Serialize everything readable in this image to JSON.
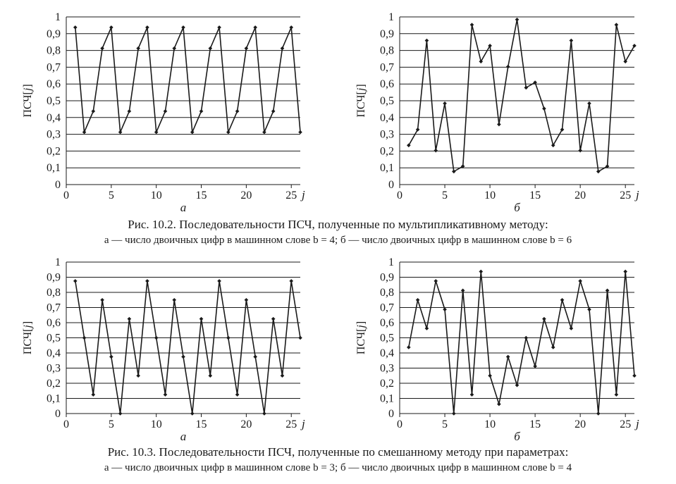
{
  "figures": [
    {
      "caption_title": "Рис. 10.2. Последовательности ПСЧ, полученные по мультипликативному методу:",
      "caption_sub": "а — число двоичных цифр в машинном слове b = 4; б — число двоичных цифр в машинном слове b = 6"
    },
    {
      "caption_title": "Рис. 10.3. Последовательности ПСЧ, полученные по смешанному методу при параметрах:",
      "caption_sub": "а — число двоичных цифр в машинном слове b = 3; б — число двоичных цифр в машинном слове b = 4"
    }
  ],
  "colors": {
    "line": "#1a1a1a",
    "grid": "#1a1a1a",
    "background": "#ffffff"
  },
  "chart_data": [
    {
      "type": "line",
      "panel_label": "а",
      "ylabel_prefix": "ПСЧ[",
      "ylabel_var": "j",
      "ylabel_suffix": "]",
      "xlabel": "j",
      "xlim": [
        0,
        26
      ],
      "ylim": [
        0,
        1
      ],
      "xticks": [
        "0",
        "5",
        "10",
        "15",
        "20",
        "25"
      ],
      "yticks": [
        "0",
        "0,1",
        "0,2",
        "0,3",
        "0,4",
        "0,5",
        "0,6",
        "0,7",
        "0,8",
        "0,9",
        "1"
      ],
      "grid": "horizontal",
      "x": [
        1,
        2,
        3,
        4,
        5,
        6,
        7,
        8,
        9,
        10,
        11,
        12,
        13,
        14,
        15,
        16,
        17,
        18,
        19,
        20,
        21,
        22,
        23,
        24,
        25,
        26
      ],
      "values": [
        0.9375,
        0.3125,
        0.4375,
        0.8125,
        0.9375,
        0.3125,
        0.4375,
        0.8125,
        0.9375,
        0.3125,
        0.4375,
        0.8125,
        0.9375,
        0.3125,
        0.4375,
        0.8125,
        0.9375,
        0.3125,
        0.4375,
        0.8125,
        0.9375,
        0.3125,
        0.4375,
        0.8125,
        0.9375,
        0.3125
      ]
    },
    {
      "type": "line",
      "panel_label": "б",
      "ylabel_prefix": "ПСЧ[",
      "ylabel_var": "j",
      "ylabel_suffix": "]",
      "xlabel": "j",
      "xlim": [
        0,
        26
      ],
      "ylim": [
        0,
        1
      ],
      "xticks": [
        "0",
        "5",
        "10",
        "15",
        "20",
        "25"
      ],
      "yticks": [
        "0",
        "0,1",
        "0,2",
        "0,3",
        "0,4",
        "0,5",
        "0,6",
        "0,7",
        "0,8",
        "0,9",
        "1"
      ],
      "grid": "horizontal",
      "x": [
        1,
        2,
        3,
        4,
        5,
        6,
        7,
        8,
        9,
        10,
        11,
        12,
        13,
        14,
        15,
        16,
        17,
        18,
        19,
        20,
        21,
        22,
        23,
        24,
        25,
        26
      ],
      "values": [
        0.234,
        0.328,
        0.859,
        0.203,
        0.484,
        0.078,
        0.109,
        0.953,
        0.734,
        0.828,
        0.359,
        0.703,
        0.984,
        0.578,
        0.609,
        0.453,
        0.234,
        0.328,
        0.859,
        0.203,
        0.484,
        0.078,
        0.109,
        0.953,
        0.734,
        0.828
      ]
    },
    {
      "type": "line",
      "panel_label": "а",
      "ylabel_prefix": "ПСЧ[",
      "ylabel_var": "j",
      "ylabel_suffix": "]",
      "xlabel": "j",
      "xlim": [
        0,
        26
      ],
      "ylim": [
        0,
        1
      ],
      "xticks": [
        "0",
        "5",
        "10",
        "15",
        "20",
        "25"
      ],
      "yticks": [
        "0",
        "0,1",
        "0,2",
        "0,3",
        "0,4",
        "0,5",
        "0,6",
        "0,7",
        "0,8",
        "0,9",
        "1"
      ],
      "grid": "horizontal",
      "x": [
        1,
        2,
        3,
        4,
        5,
        6,
        7,
        8,
        9,
        10,
        11,
        12,
        13,
        14,
        15,
        16,
        17,
        18,
        19,
        20,
        21,
        22,
        23,
        24,
        25,
        26
      ],
      "values": [
        0.875,
        0.5,
        0.125,
        0.75,
        0.375,
        0.0,
        0.625,
        0.25,
        0.875,
        0.5,
        0.125,
        0.75,
        0.375,
        0.0,
        0.625,
        0.25,
        0.875,
        0.5,
        0.125,
        0.75,
        0.375,
        0.0,
        0.625,
        0.25,
        0.875,
        0.5
      ]
    },
    {
      "type": "line",
      "panel_label": "б",
      "ylabel_prefix": "ПСЧ[",
      "ylabel_var": "j",
      "ylabel_suffix": "]",
      "xlabel": "j",
      "xlim": [
        0,
        26
      ],
      "ylim": [
        0,
        1
      ],
      "xticks": [
        "0",
        "5",
        "10",
        "15",
        "20",
        "25"
      ],
      "yticks": [
        "0",
        "0,1",
        "0,2",
        "0,3",
        "0,4",
        "0,5",
        "0,6",
        "0,7",
        "0,8",
        "0,9",
        "1"
      ],
      "grid": "horizontal",
      "x": [
        1,
        2,
        3,
        4,
        5,
        6,
        7,
        8,
        9,
        10,
        11,
        12,
        13,
        14,
        15,
        16,
        17,
        18,
        19,
        20,
        21,
        22,
        23,
        24,
        25,
        26
      ],
      "values": [
        0.4375,
        0.75,
        0.5625,
        0.875,
        0.6875,
        0.0,
        0.8125,
        0.125,
        0.9375,
        0.25,
        0.0625,
        0.375,
        0.1875,
        0.5,
        0.3125,
        0.625,
        0.4375,
        0.75,
        0.5625,
        0.875,
        0.6875,
        0.0,
        0.8125,
        0.125,
        0.9375,
        0.25
      ]
    }
  ]
}
